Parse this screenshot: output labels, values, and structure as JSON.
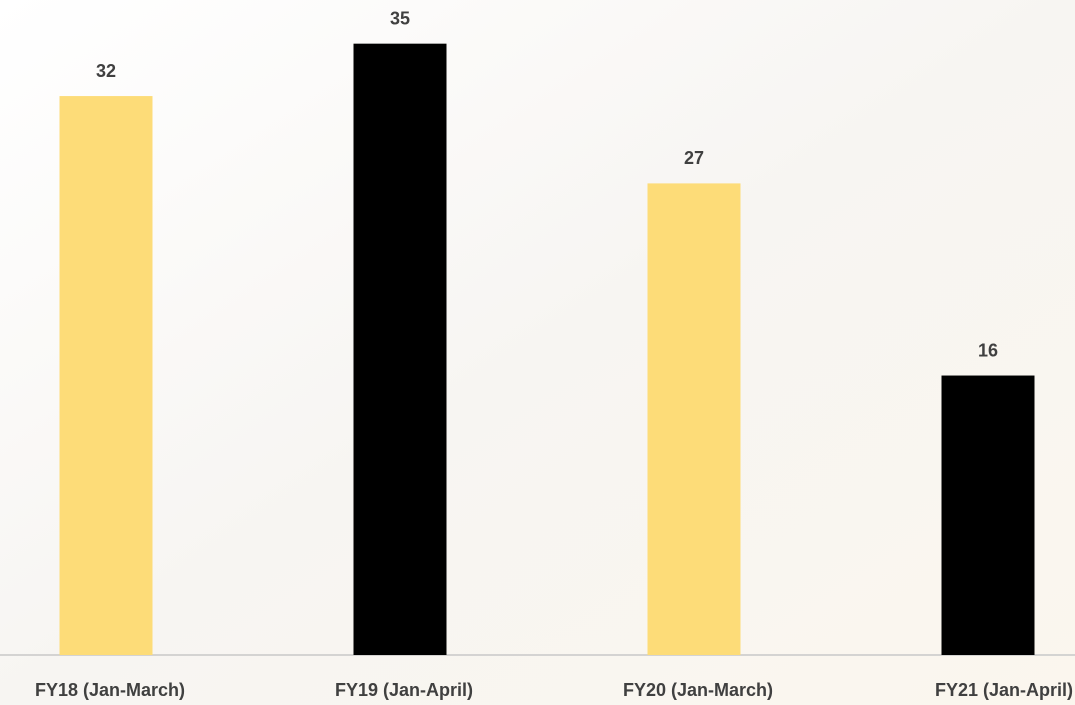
{
  "chart_data": {
    "type": "bar",
    "categories": [
      "FY18 (Jan-March)",
      "FY19 (Jan-April)",
      "FY20 (Jan-March)",
      "FY21 (Jan-April)"
    ],
    "values": [
      32,
      35,
      27,
      16
    ],
    "colors": [
      "#fddc78",
      "#000000",
      "#fddc78",
      "#000000"
    ],
    "ylim": [
      0,
      37.5
    ]
  }
}
